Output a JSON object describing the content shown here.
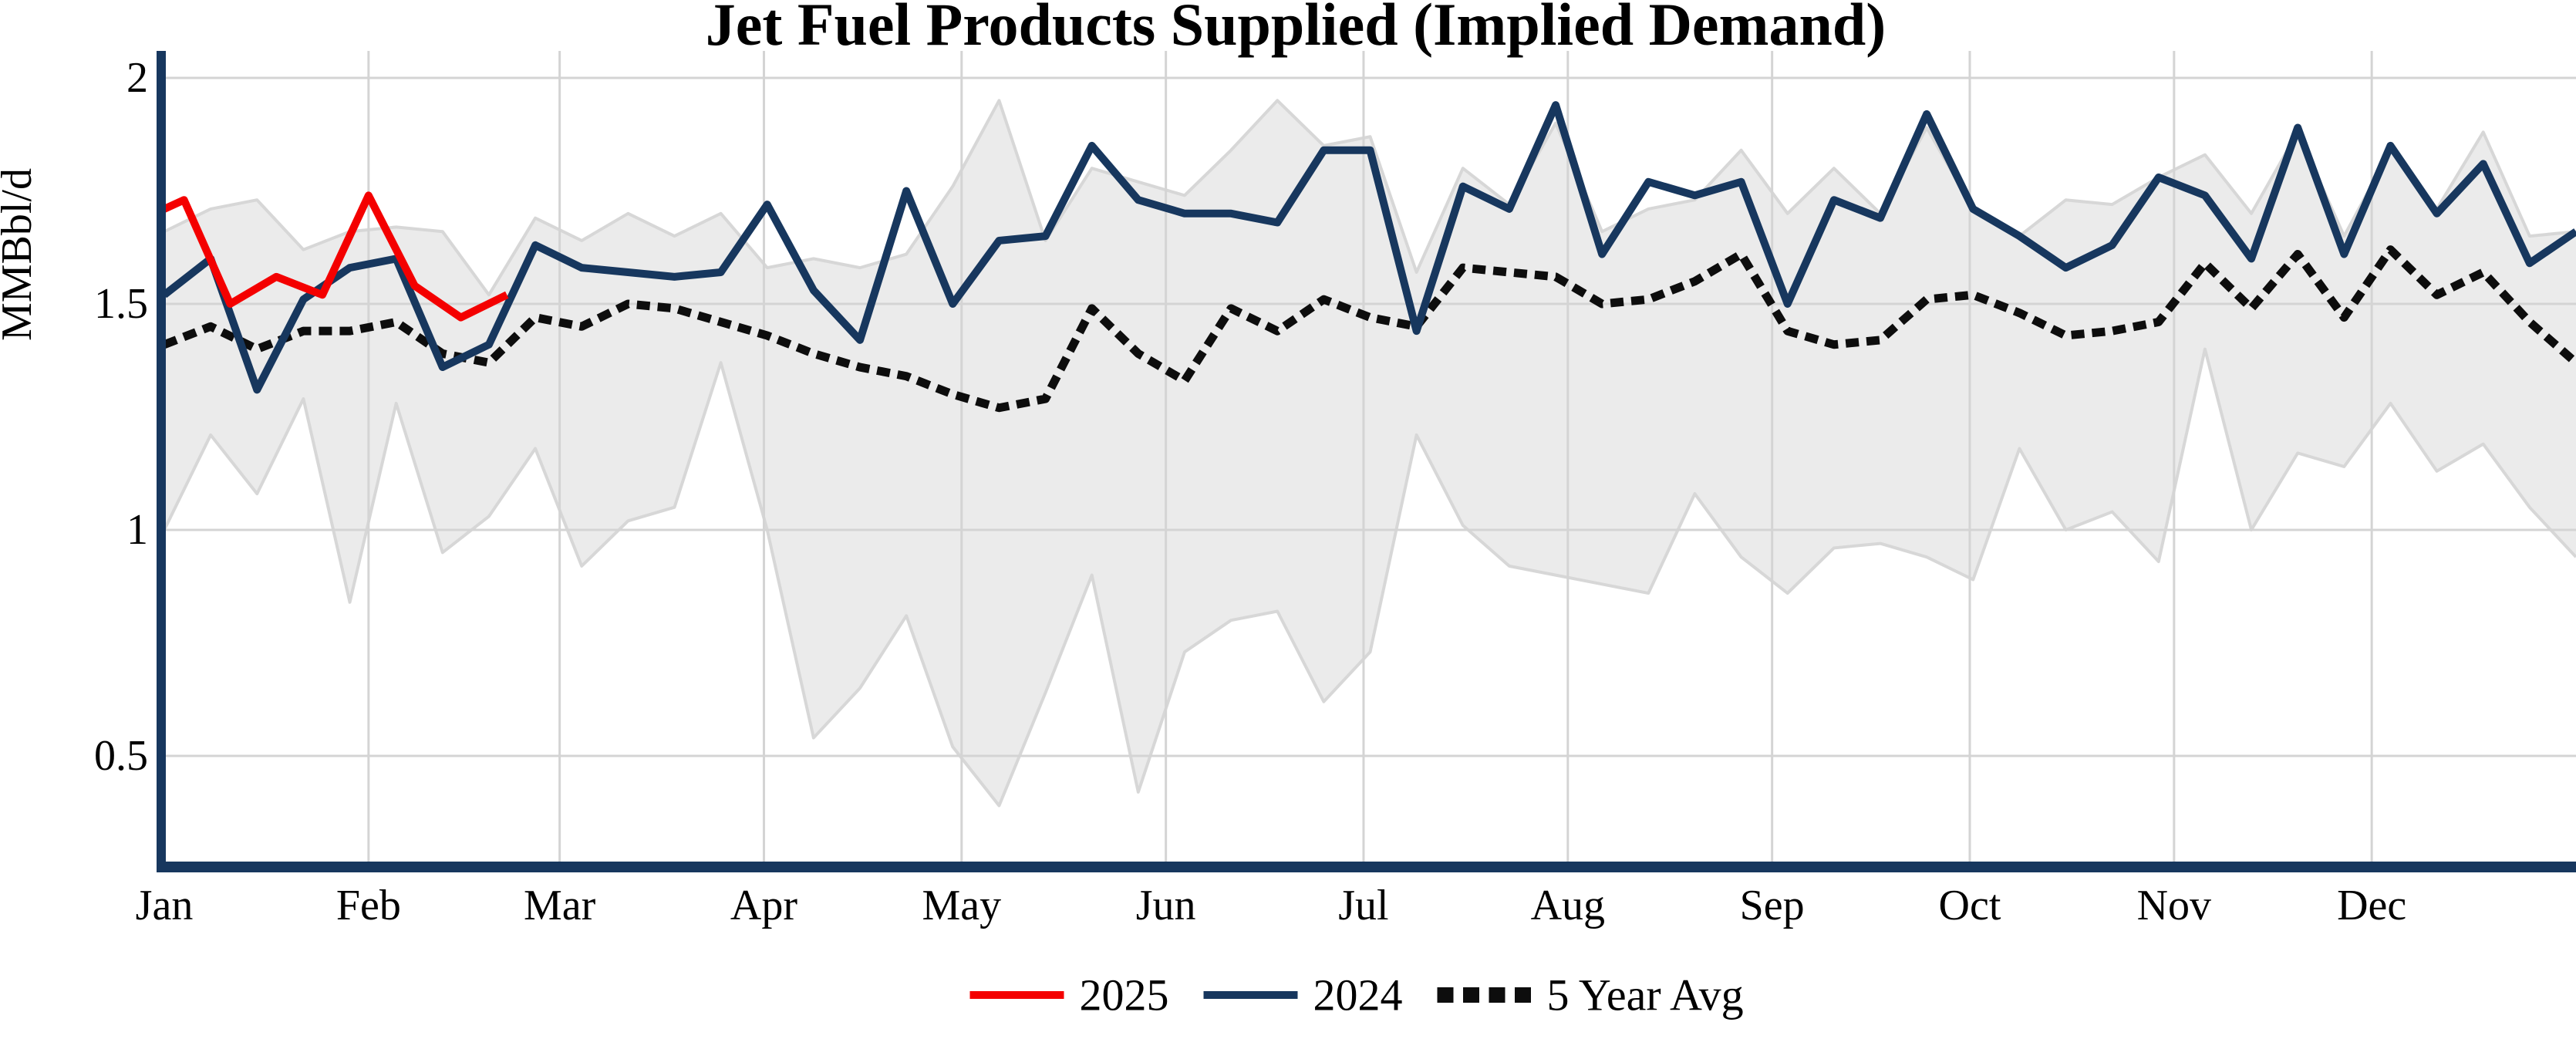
{
  "chart_data": {
    "type": "line",
    "title": "Jet Fuel Products Supplied (Implied Demand)",
    "ylabel": "MMBbl/d",
    "background": "#ffffff",
    "axis_color": "#17375e",
    "grid_color": "#d4d4d4",
    "grid": true,
    "ylim": [
      0.27,
      2.06
    ],
    "yticks": [
      {
        "label": "2",
        "value": 2
      },
      {
        "label": "1.5",
        "value": 1.5
      },
      {
        "label": "1",
        "value": 1
      },
      {
        "label": "0.5",
        "value": 0.5
      }
    ],
    "x_months": [
      {
        "label": "Jan",
        "day": 0
      },
      {
        "label": "Feb",
        "day": 31
      },
      {
        "label": "Mar",
        "day": 60
      },
      {
        "label": "Apr",
        "day": 91
      },
      {
        "label": "May",
        "day": 121
      },
      {
        "label": "Jun",
        "day": 152
      },
      {
        "label": "Jul",
        "day": 182
      },
      {
        "label": "Aug",
        "day": 213
      },
      {
        "label": "Sep",
        "day": 244
      },
      {
        "label": "Oct",
        "day": 274
      },
      {
        "label": "Nov",
        "day": 305
      },
      {
        "label": "Dec",
        "day": 335
      }
    ],
    "days_per_year": 366,
    "legend_position": "bottom",
    "band": {
      "name": "5-year min-max range",
      "fill": "#ebebeb",
      "edge": "#d7d7d7",
      "max": [
        1.66,
        1.71,
        1.73,
        1.62,
        1.66,
        1.67,
        1.66,
        1.52,
        1.69,
        1.64,
        1.7,
        1.65,
        1.7,
        1.58,
        1.6,
        1.58,
        1.61,
        1.76,
        1.95,
        1.64,
        1.8,
        1.77,
        1.74,
        1.84,
        1.95,
        1.85,
        1.87,
        1.57,
        1.8,
        1.72,
        1.9,
        1.66,
        1.71,
        1.73,
        1.84,
        1.7,
        1.8,
        1.7,
        1.89,
        1.71,
        1.65,
        1.73,
        1.72,
        1.78,
        1.83,
        1.7,
        1.88,
        1.65,
        1.84,
        1.71,
        1.88,
        1.65,
        1.66
      ],
      "min": [
        1.0,
        1.21,
        1.08,
        1.29,
        0.84,
        1.28,
        0.95,
        1.03,
        1.18,
        0.92,
        1.02,
        1.05,
        1.37,
        1.0,
        0.54,
        0.65,
        0.81,
        0.52,
        0.39,
        0.64,
        0.9,
        0.42,
        0.73,
        0.8,
        0.82,
        0.62,
        0.73,
        1.21,
        1.01,
        0.92,
        0.9,
        0.88,
        0.86,
        1.08,
        0.94,
        0.86,
        0.96,
        0.97,
        0.94,
        0.89,
        1.18,
        1.0,
        1.04,
        0.93,
        1.4,
        1.0,
        1.17,
        1.14,
        1.28,
        1.13,
        1.19,
        1.05,
        0.94
      ]
    },
    "series": [
      {
        "name": "2025",
        "color": "#f40000",
        "style": "solid",
        "cadence": "weekly",
        "day_offsets": [
          0,
          3,
          10,
          17,
          24,
          31,
          38,
          45,
          52
        ],
        "values": [
          1.71,
          1.73,
          1.5,
          1.56,
          1.52,
          1.74,
          1.54,
          1.47,
          1.52
        ]
      },
      {
        "name": "2024",
        "color": "#17375e",
        "style": "solid",
        "cadence": "weekly",
        "values": [
          1.52,
          1.6,
          1.31,
          1.51,
          1.58,
          1.6,
          1.36,
          1.41,
          1.63,
          1.58,
          1.57,
          1.56,
          1.57,
          1.72,
          1.53,
          1.42,
          1.75,
          1.5,
          1.64,
          1.65,
          1.85,
          1.73,
          1.7,
          1.7,
          1.68,
          1.84,
          1.84,
          1.44,
          1.76,
          1.71,
          1.94,
          1.61,
          1.77,
          1.74,
          1.77,
          1.5,
          1.73,
          1.69,
          1.92,
          1.71,
          1.65,
          1.58,
          1.63,
          1.78,
          1.74,
          1.6,
          1.89,
          1.61,
          1.85,
          1.7,
          1.81,
          1.59,
          1.66
        ]
      },
      {
        "name": "5 Year Avg",
        "color": "#0d0d0d",
        "style": "dashed",
        "cadence": "weekly",
        "values": [
          1.41,
          1.45,
          1.4,
          1.44,
          1.44,
          1.46,
          1.39,
          1.37,
          1.47,
          1.45,
          1.5,
          1.49,
          1.46,
          1.43,
          1.39,
          1.36,
          1.34,
          1.3,
          1.27,
          1.29,
          1.49,
          1.39,
          1.33,
          1.49,
          1.44,
          1.51,
          1.47,
          1.45,
          1.58,
          1.57,
          1.56,
          1.5,
          1.51,
          1.55,
          1.61,
          1.44,
          1.41,
          1.42,
          1.51,
          1.52,
          1.48,
          1.43,
          1.44,
          1.46,
          1.59,
          1.49,
          1.61,
          1.47,
          1.62,
          1.52,
          1.57,
          1.46,
          1.37
        ]
      }
    ],
    "legend": [
      "2025",
      "2024",
      "5 Year Avg"
    ]
  }
}
